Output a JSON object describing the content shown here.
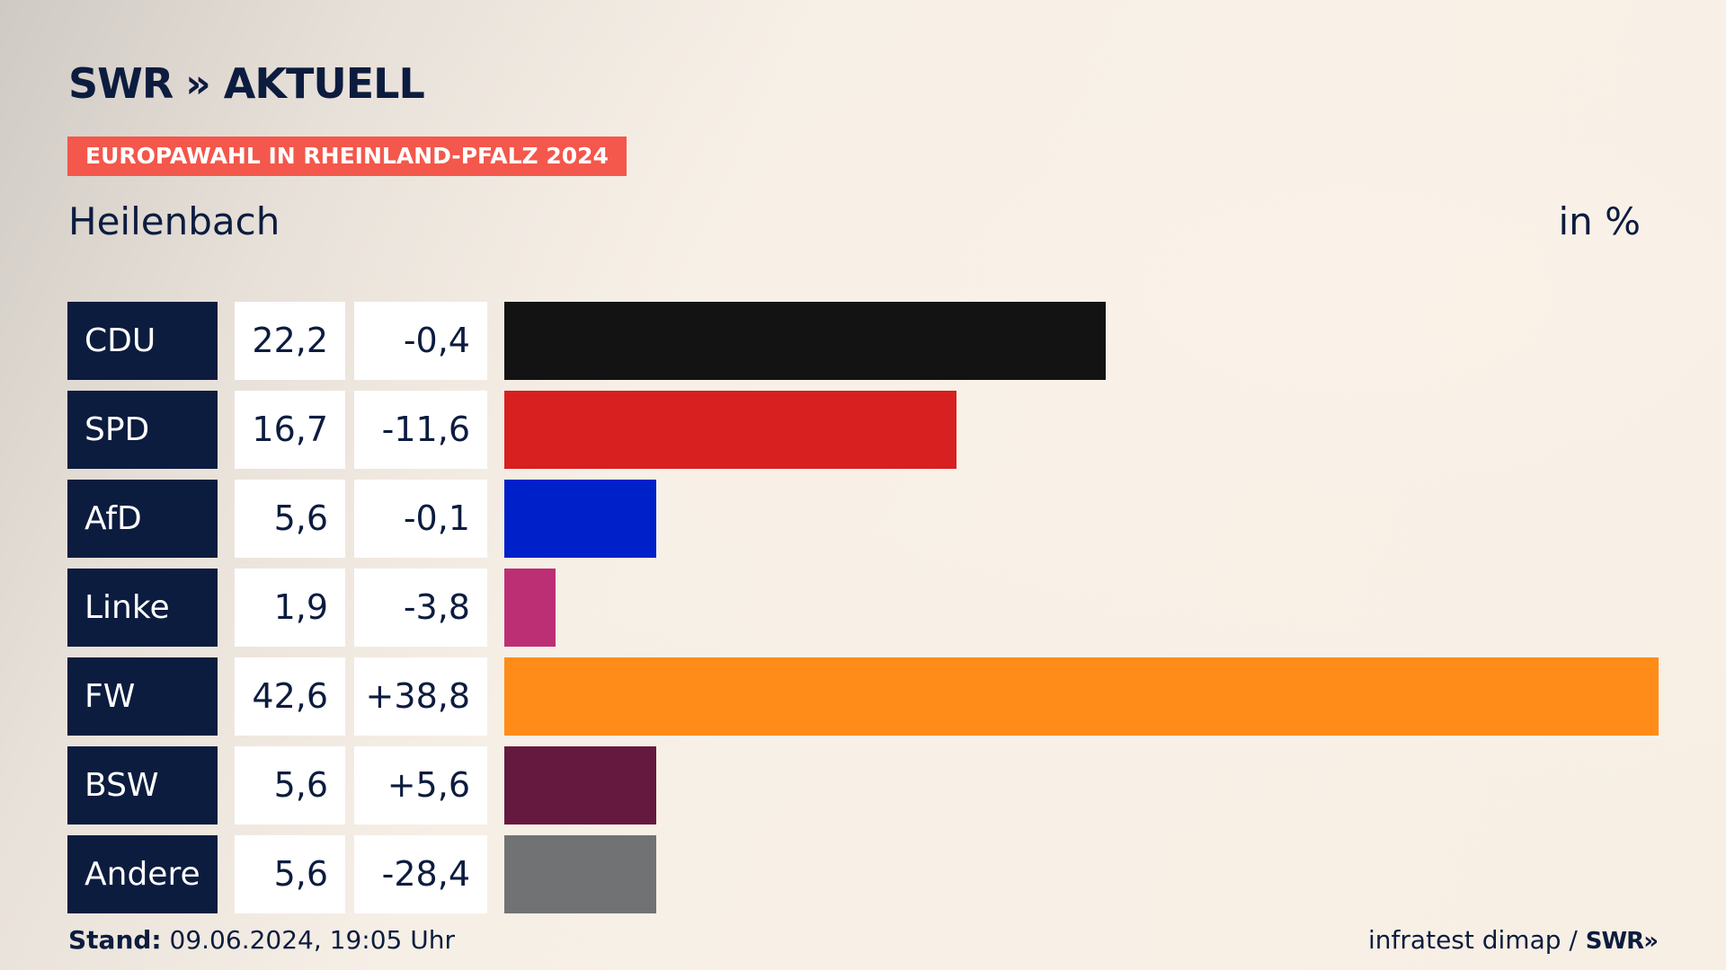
{
  "brand": {
    "name": "SWR",
    "chevrons": "»",
    "product": "AKTUELL"
  },
  "banner": "EUROPAWAHL IN RHEINLAND-PFALZ 2024",
  "subtitle": "Heilenbach",
  "unit": "in %",
  "colors": {
    "navy": "#0c1c3f",
    "banner": "#f4574b"
  },
  "chart_data": {
    "type": "bar",
    "orientation": "horizontal",
    "title": "Heilenbach",
    "unit": "in %",
    "xlim": [
      0,
      42.6
    ],
    "categories": [
      "CDU",
      "SPD",
      "AfD",
      "Linke",
      "FW",
      "BSW",
      "Andere"
    ],
    "values": [
      22.2,
      16.7,
      5.6,
      1.9,
      42.6,
      5.6,
      5.6
    ],
    "value_labels": [
      "22,2",
      "16,7",
      "5,6",
      "1,9",
      "42,6",
      "5,6",
      "5,6"
    ],
    "diff_labels": [
      "-0,4",
      "-11,6",
      "-0,1",
      "-3,8",
      "+38,8",
      "+5,6",
      "-28,4"
    ],
    "diffs": [
      -0.4,
      -11.6,
      -0.1,
      -3.8,
      38.8,
      5.6,
      -28.4
    ],
    "bar_colors": [
      "#131313",
      "#d7201f",
      "#0020c9",
      "#bd2f74",
      "#ff8c18",
      "#65193f",
      "#717273"
    ]
  },
  "footer": {
    "stand_label": "Stand:",
    "stand_value": "09.06.2024, 19:05 Uhr",
    "source": "infratest dimap /",
    "source_brand": "SWR»"
  }
}
